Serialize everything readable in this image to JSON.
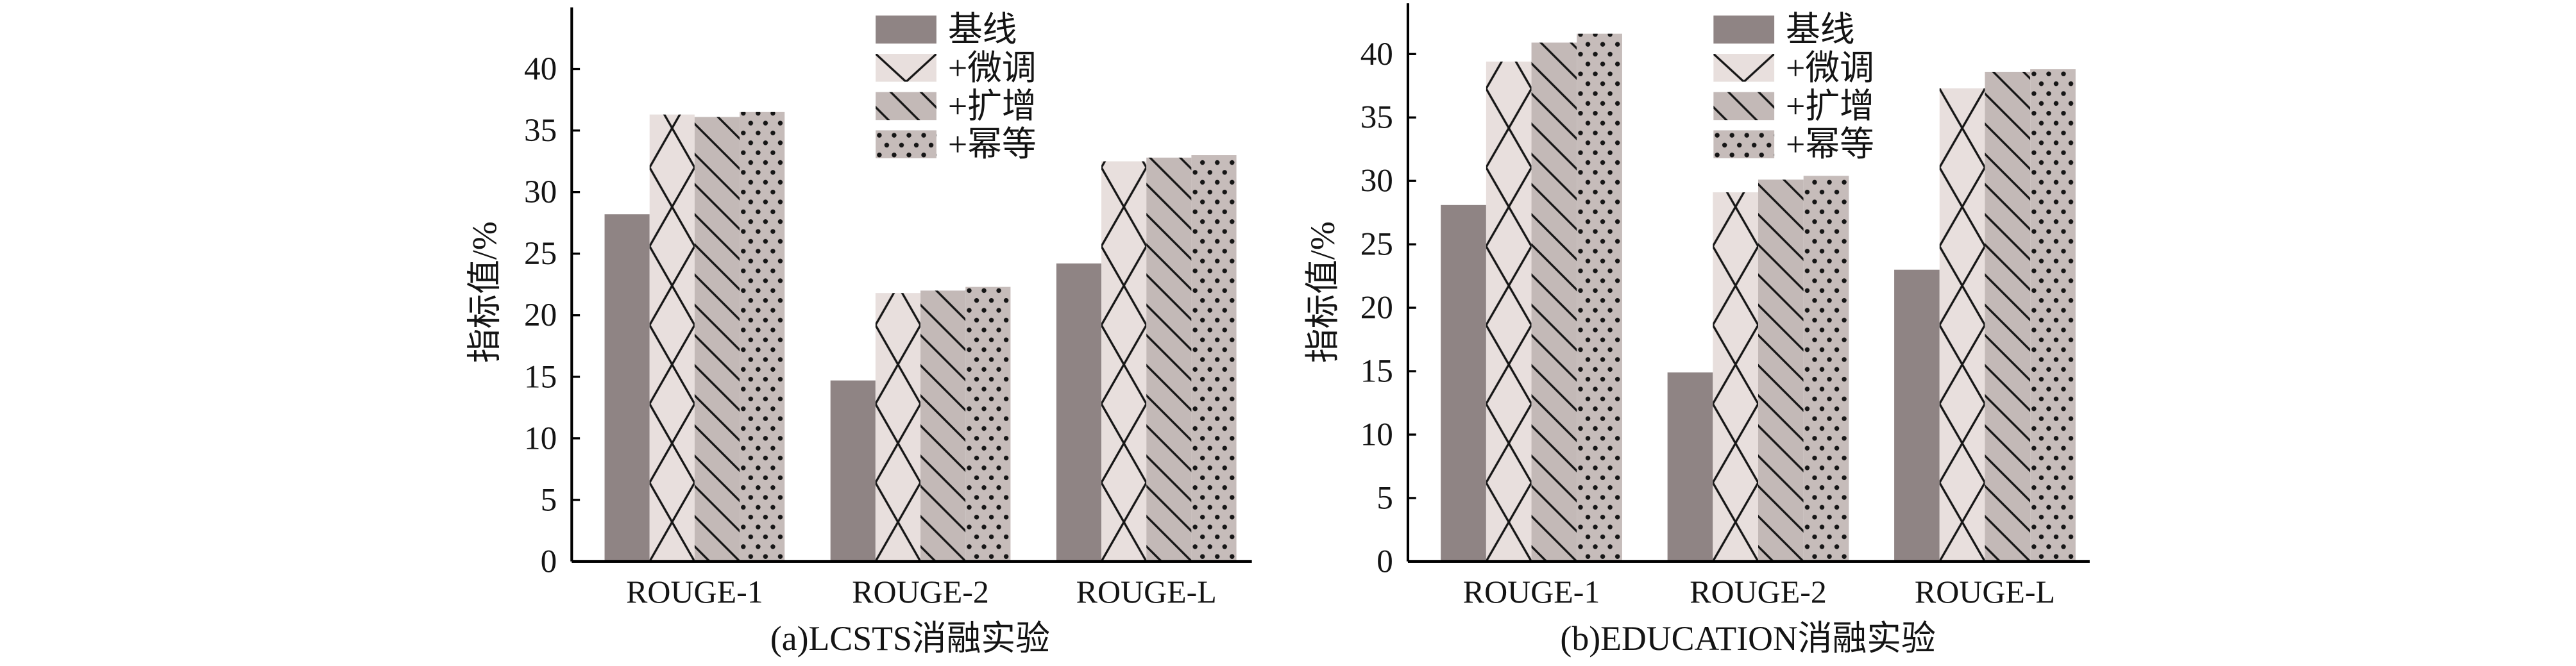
{
  "chart_data": [
    {
      "type": "bar",
      "caption": "(a)LCSTS消融实验",
      "ylabel": "指标值/%",
      "categories": [
        "ROUGE-1",
        "ROUGE-2",
        "ROUGE-L"
      ],
      "series": [
        {
          "name": "基线",
          "color": "#8f8484",
          "values": [
            28.2,
            14.7,
            24.2
          ]
        },
        {
          "name": "+微调",
          "color": "#e8dfdd",
          "values": [
            36.3,
            21.8,
            32.5
          ]
        },
        {
          "name": "+扩增",
          "color": "#c3b9b7",
          "values": [
            36.1,
            22.0,
            32.8
          ]
        },
        {
          "name": "+幂等",
          "color": "#c6bcba",
          "values": [
            36.5,
            22.3,
            33.0
          ]
        }
      ],
      "yticks": [
        0,
        5,
        10,
        15,
        20,
        25,
        30,
        35,
        40
      ],
      "ylim": [
        0,
        45
      ],
      "legend_position": "top-center",
      "grid": false
    },
    {
      "type": "bar",
      "caption": "(b)EDUCATION消融实验",
      "ylabel": "指标值/%",
      "categories": [
        "ROUGE-1",
        "ROUGE-2",
        "ROUGE-L"
      ],
      "series": [
        {
          "name": "基线",
          "color": "#8f8484",
          "values": [
            28.1,
            14.9,
            23.0
          ]
        },
        {
          "name": "+微调",
          "color": "#e8dfdd",
          "values": [
            39.4,
            29.1,
            37.3
          ]
        },
        {
          "name": "+扩增",
          "color": "#c3b9b7",
          "values": [
            40.9,
            30.1,
            38.6
          ]
        },
        {
          "name": "+幂等",
          "color": "#c6bcba",
          "values": [
            41.6,
            30.4,
            38.8
          ]
        }
      ],
      "yticks": [
        0,
        5,
        10,
        15,
        20,
        25,
        30,
        35,
        40
      ],
      "ylim": [
        0,
        44
      ],
      "legend_position": "top-center",
      "grid": false
    }
  ]
}
